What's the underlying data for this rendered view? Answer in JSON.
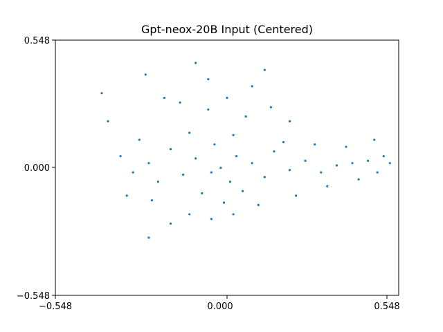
{
  "chart_data": {
    "type": "scatter",
    "title": "Gpt-neox-20B Input (Centered)",
    "xlabel": "",
    "ylabel": "",
    "xlim": [
      -0.548,
      0.548
    ],
    "ylim": [
      -0.548,
      0.548
    ],
    "xticks": [
      -0.548,
      0.0,
      0.548
    ],
    "yticks": [
      -0.548,
      0.0,
      0.548
    ],
    "xtick_labels": [
      "−0.548",
      "0.000",
      "0.548"
    ],
    "ytick_labels": [
      "−0.548",
      "0.000",
      "0.548"
    ],
    "grid": false,
    "marker_color": "#1f77b4",
    "series": [
      {
        "points": [
          [
            -0.02,
            0.0
          ],
          [
            -0.05,
            -0.02
          ],
          [
            0.03,
            0.05
          ],
          [
            0.01,
            -0.06
          ],
          [
            -0.1,
            0.04
          ],
          [
            0.08,
            0.02
          ],
          [
            -0.14,
            -0.03
          ],
          [
            0.12,
            -0.04
          ],
          [
            -0.04,
            0.1
          ],
          [
            0.05,
            -0.1
          ],
          [
            -0.08,
            -0.11
          ],
          [
            0.15,
            0.07
          ],
          [
            -0.18,
            0.08
          ],
          [
            0.2,
            -0.01
          ],
          [
            0.02,
            0.14
          ],
          [
            -0.01,
            -0.15
          ],
          [
            -0.22,
            -0.06
          ],
          [
            0.18,
            0.11
          ],
          [
            0.25,
            0.03
          ],
          [
            -0.12,
            0.15
          ],
          [
            0.1,
            -0.16
          ],
          [
            -0.25,
            0.02
          ],
          [
            0.3,
            -0.02
          ],
          [
            0.35,
            0.01
          ],
          [
            0.4,
            0.02
          ],
          [
            0.45,
            0.03
          ],
          [
            0.5,
            0.05
          ],
          [
            0.52,
            0.02
          ],
          [
            -0.3,
            -0.02
          ],
          [
            -0.28,
            0.12
          ],
          [
            0.06,
            0.22
          ],
          [
            -0.06,
            0.25
          ],
          [
            0.0,
            0.3
          ],
          [
            -0.15,
            0.28
          ],
          [
            -0.2,
            0.3
          ],
          [
            -0.05,
            -0.22
          ],
          [
            0.02,
            -0.2
          ],
          [
            -0.12,
            -0.2
          ],
          [
            -0.24,
            -0.14
          ],
          [
            0.22,
            -0.12
          ],
          [
            0.28,
            0.1
          ],
          [
            0.32,
            -0.08
          ],
          [
            0.38,
            0.09
          ],
          [
            0.42,
            -0.05
          ],
          [
            -0.34,
            0.05
          ],
          [
            -0.38,
            0.2
          ],
          [
            -0.4,
            0.32
          ],
          [
            -0.26,
            0.4
          ],
          [
            -0.06,
            0.38
          ],
          [
            0.08,
            0.35
          ],
          [
            0.14,
            0.26
          ],
          [
            0.2,
            0.2
          ],
          [
            -0.32,
            -0.12
          ],
          [
            -0.18,
            -0.24
          ],
          [
            -0.25,
            -0.3
          ],
          [
            0.48,
            -0.02
          ],
          [
            0.47,
            0.12
          ],
          [
            0.55,
            0.1
          ],
          [
            -0.1,
            0.45
          ],
          [
            0.12,
            0.42
          ]
        ]
      }
    ]
  }
}
